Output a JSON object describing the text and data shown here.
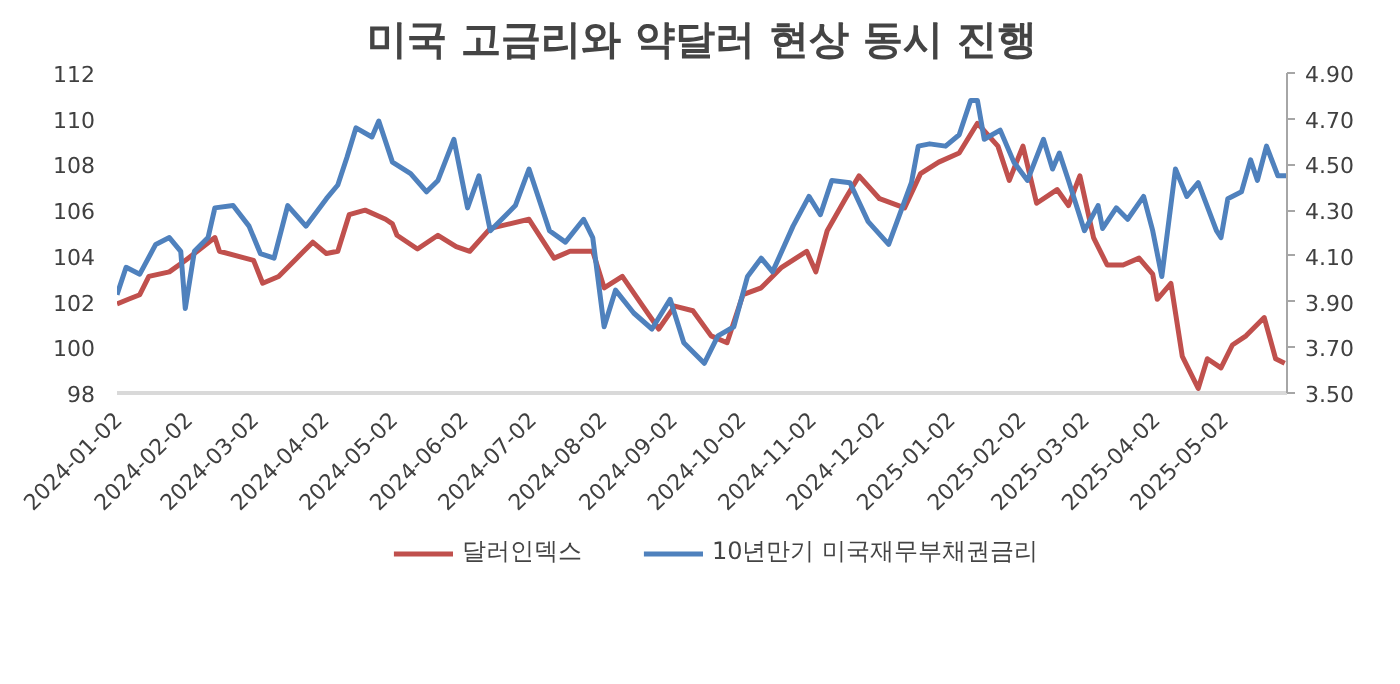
{
  "chart_data": {
    "type": "line",
    "title": "미국 고금리와 약달러 현상 동시 진행",
    "xlim": [
      "2024-01-02",
      "2025-05-30"
    ],
    "xticks": [
      "2024-01-02",
      "2024-02-02",
      "2024-03-02",
      "2024-04-02",
      "2024-05-02",
      "2024-06-02",
      "2024-07-02",
      "2024-08-02",
      "2024-09-02",
      "2024-10-02",
      "2024-11-02",
      "2024-12-02",
      "2025-01-02",
      "2025-02-02",
      "2025-03-02",
      "2025-04-02",
      "2025-05-02"
    ],
    "ylim": [
      98,
      112
    ],
    "yticks": [
      98,
      100,
      102,
      104,
      106,
      108,
      110,
      112
    ],
    "y2lim": [
      3.5,
      4.9
    ],
    "y2ticks": [
      {
        "value": 3.5,
        "label": "3.50"
      },
      {
        "value": 3.7,
        "label": "3.70"
      },
      {
        "value": 3.9,
        "label": "3.90"
      },
      {
        "value": 4.1,
        "label": "4.10"
      },
      {
        "value": 4.3,
        "label": "4.30"
      },
      {
        "value": 4.5,
        "label": "4.50"
      },
      {
        "value": 4.7,
        "label": "4.70"
      },
      {
        "value": 4.9,
        "label": "4.90"
      }
    ],
    "grid": false,
    "legend": "bottom",
    "line_style": "solid",
    "series": [
      {
        "name": "달러인덱스",
        "color": "#c0504d",
        "x": [
          "2024-01-02",
          "2024-01-07",
          "2024-01-12",
          "2024-01-16",
          "2024-01-25",
          "2024-02-01",
          "2024-02-05",
          "2024-02-14",
          "2024-02-16",
          "2024-03-02",
          "2024-03-06",
          "2024-03-13",
          "2024-03-21",
          "2024-03-28",
          "2024-04-03",
          "2024-04-08",
          "2024-04-13",
          "2024-04-20",
          "2024-04-29",
          "2024-05-02",
          "2024-05-04",
          "2024-05-13",
          "2024-05-22",
          "2024-05-30",
          "2024-06-05",
          "2024-06-14",
          "2024-07-01",
          "2024-07-12",
          "2024-07-19",
          "2024-07-29",
          "2024-08-03",
          "2024-08-11",
          "2024-08-20",
          "2024-08-27",
          "2024-09-03",
          "2024-09-11",
          "2024-09-19",
          "2024-09-26",
          "2024-10-03",
          "2024-10-11",
          "2024-10-20",
          "2024-10-31",
          "2024-11-04",
          "2024-11-09",
          "2024-11-17",
          "2024-11-23",
          "2024-12-02",
          "2024-12-13",
          "2024-12-20",
          "2024-12-28",
          "2025-01-06",
          "2025-01-14",
          "2025-01-23",
          "2025-01-28",
          "2025-02-03",
          "2025-02-09",
          "2025-02-18",
          "2025-02-23",
          "2025-02-28",
          "2025-03-06",
          "2025-03-12",
          "2025-03-19",
          "2025-03-26",
          "2025-04-01",
          "2025-04-03",
          "2025-04-09",
          "2025-04-14",
          "2025-04-21",
          "2025-04-25",
          "2025-05-01",
          "2025-05-06",
          "2025-05-12",
          "2025-05-20",
          "2025-05-25",
          "2025-05-29"
        ],
        "values": [
          101.9,
          102.1,
          102.3,
          103.1,
          103.3,
          103.8,
          104.1,
          104.8,
          104.2,
          103.8,
          102.8,
          103.1,
          103.9,
          104.6,
          104.1,
          104.2,
          105.8,
          106.0,
          105.6,
          105.4,
          104.9,
          104.3,
          104.9,
          104.4,
          104.2,
          105.2,
          105.6,
          103.9,
          104.2,
          104.2,
          102.6,
          103.1,
          101.8,
          100.8,
          101.8,
          101.6,
          100.5,
          100.2,
          102.3,
          102.6,
          103.5,
          104.2,
          103.3,
          105.1,
          106.5,
          107.5,
          106.5,
          106.1,
          107.6,
          108.1,
          108.5,
          109.8,
          108.8,
          107.3,
          108.8,
          106.3,
          106.9,
          106.2,
          107.5,
          104.8,
          103.6,
          103.6,
          103.9,
          103.2,
          102.1,
          102.8,
          99.6,
          98.2,
          99.5,
          99.1,
          100.1,
          100.5,
          101.3,
          99.5,
          99.3
        ]
      },
      {
        "name": "10년만기 미국재무부채권금리",
        "color": "#4f81bd",
        "axis": "y2",
        "x": [
          "2024-01-02",
          "2024-01-06",
          "2024-01-12",
          "2024-01-19",
          "2024-01-25",
          "2024-01-30",
          "2024-02-01",
          "2024-02-05",
          "2024-02-11",
          "2024-02-14",
          "2024-02-22",
          "2024-02-29",
          "2024-03-05",
          "2024-03-11",
          "2024-03-17",
          "2024-03-25",
          "2024-04-03",
          "2024-04-08",
          "2024-04-12",
          "2024-04-16",
          "2024-04-23",
          "2024-04-26",
          "2024-05-02",
          "2024-05-10",
          "2024-05-17",
          "2024-05-22",
          "2024-05-29",
          "2024-06-04",
          "2024-06-09",
          "2024-06-14",
          "2024-06-25",
          "2024-07-01",
          "2024-07-10",
          "2024-07-17",
          "2024-07-25",
          "2024-07-29",
          "2024-08-03",
          "2024-08-08",
          "2024-08-16",
          "2024-08-24",
          "2024-09-01",
          "2024-09-07",
          "2024-09-16",
          "2024-09-22",
          "2024-09-29",
          "2024-10-05",
          "2024-10-11",
          "2024-10-16",
          "2024-10-25",
          "2024-11-01",
          "2024-11-06",
          "2024-11-11",
          "2024-11-19",
          "2024-11-27",
          "2024-12-06",
          "2024-12-16",
          "2024-12-19",
          "2024-12-24",
          "2024-12-31",
          "2025-01-06",
          "2025-01-11",
          "2025-01-14",
          "2025-01-17",
          "2025-01-24",
          "2025-01-30",
          "2025-02-05",
          "2025-02-12",
          "2025-02-16",
          "2025-02-19",
          "2025-02-23",
          "2025-03-02",
          "2025-03-08",
          "2025-03-10",
          "2025-03-16",
          "2025-03-21",
          "2025-03-28",
          "2025-04-01",
          "2025-04-05",
          "2025-04-11",
          "2025-04-16",
          "2025-04-21",
          "2025-04-29",
          "2025-05-01",
          "2025-05-04",
          "2025-05-10",
          "2025-05-14",
          "2025-05-17",
          "2025-05-21",
          "2025-05-26",
          "2025-05-30"
        ],
        "values": [
          3.93,
          4.05,
          4.02,
          4.15,
          4.18,
          4.12,
          3.87,
          4.12,
          4.18,
          4.31,
          4.32,
          4.23,
          4.11,
          4.09,
          4.32,
          4.23,
          4.35,
          4.41,
          4.53,
          4.66,
          4.62,
          4.69,
          4.51,
          4.46,
          4.38,
          4.43,
          4.61,
          4.31,
          4.45,
          4.21,
          4.32,
          4.48,
          4.21,
          4.16,
          4.26,
          4.18,
          3.79,
          3.95,
          3.85,
          3.78,
          3.91,
          3.72,
          3.63,
          3.75,
          3.79,
          4.01,
          4.09,
          4.03,
          4.23,
          4.36,
          4.28,
          4.43,
          4.42,
          4.25,
          4.15,
          4.42,
          4.58,
          4.59,
          4.58,
          4.63,
          4.78,
          4.78,
          4.61,
          4.65,
          4.51,
          4.43,
          4.61,
          4.48,
          4.55,
          4.43,
          4.21,
          4.32,
          4.22,
          4.31,
          4.26,
          4.36,
          4.21,
          4.01,
          4.48,
          4.36,
          4.42,
          4.21,
          4.18,
          4.35,
          4.38,
          4.52,
          4.43,
          4.58,
          4.45,
          4.45
        ]
      }
    ]
  }
}
